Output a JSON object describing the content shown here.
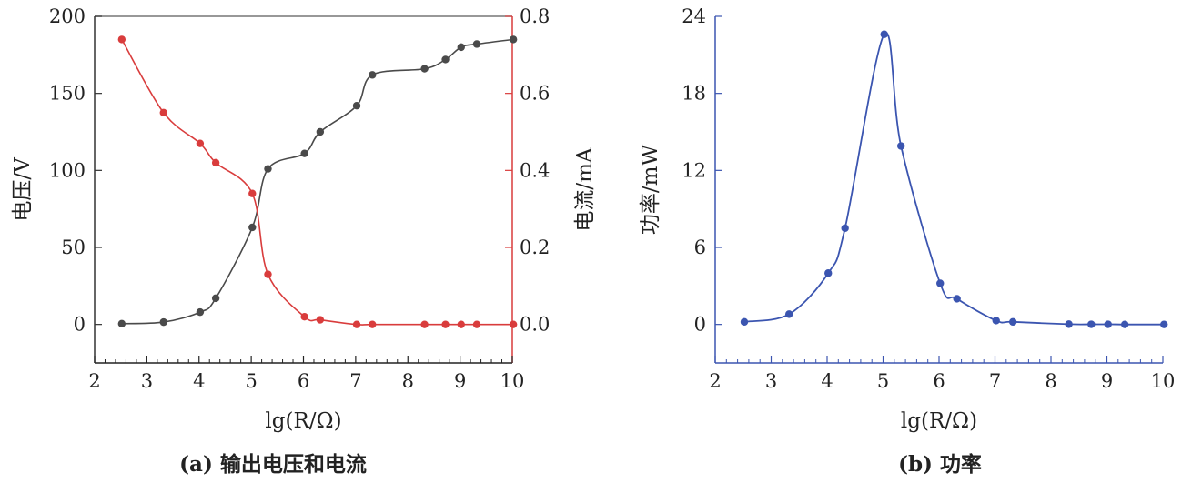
{
  "figure": {
    "captions": [
      "(a) 输出电压和电流",
      "(b) 功率"
    ]
  },
  "chart_data": [
    {
      "type": "line",
      "panel": "a",
      "caption": "(a) 输出电压和电流",
      "title": "",
      "xlabel": "lg(R/Ω)",
      "ylabel": "电压/V",
      "y2label": "电流/mA",
      "xlim": [
        2,
        10
      ],
      "ylim": [
        -25,
        200
      ],
      "y2lim": [
        -0.1,
        0.8
      ],
      "x_ticks": [
        2,
        3,
        4,
        5,
        6,
        7,
        8,
        9,
        10
      ],
      "y_ticks": [
        0,
        50,
        100,
        150,
        200
      ],
      "y2_ticks": [
        "0.0",
        "0.2",
        "0.4",
        "0.6",
        "0.8"
      ],
      "grid": false,
      "legend": "none",
      "series": [
        {
          "axis": "left",
          "color": "#4a4a4a",
          "x": [
            2.52,
            3.32,
            4.02,
            4.32,
            5.02,
            5.32,
            6.02,
            6.32,
            7.02,
            7.32,
            8.32,
            8.72,
            9.02,
            9.32,
            10.02
          ],
          "values": [
            0.5,
            1.5,
            8,
            17,
            63,
            101,
            111,
            125,
            142,
            162,
            166,
            172,
            180,
            182,
            185
          ]
        },
        {
          "axis": "right",
          "color": "#d93c3c",
          "x": [
            2.52,
            3.32,
            4.02,
            4.32,
            5.02,
            5.32,
            6.02,
            6.32,
            7.02,
            7.32,
            8.32,
            8.72,
            9.02,
            9.32,
            10.02
          ],
          "values": [
            0.74,
            0.55,
            0.47,
            0.42,
            0.34,
            0.13,
            0.02,
            0.012,
            0.0,
            0.0,
            0.0,
            0.0,
            0.0,
            0.0,
            0.0
          ]
        }
      ]
    },
    {
      "type": "line",
      "panel": "b",
      "caption": "(b) 功率",
      "title": "",
      "xlabel": "lg(R/Ω)",
      "ylabel": "功率/mW",
      "xlim": [
        2,
        10
      ],
      "ylim": [
        -3,
        24
      ],
      "x_ticks": [
        2,
        3,
        4,
        5,
        6,
        7,
        8,
        9,
        10
      ],
      "y_ticks": [
        0,
        6,
        12,
        18,
        24
      ],
      "grid": false,
      "legend": "none",
      "series": [
        {
          "color": "#3b55b0",
          "x": [
            2.52,
            3.32,
            4.02,
            4.32,
            5.02,
            5.32,
            6.02,
            6.32,
            7.02,
            7.32,
            8.32,
            8.72,
            9.02,
            9.32,
            10.02
          ],
          "values": [
            0.2,
            0.8,
            4.0,
            7.5,
            22.6,
            13.9,
            3.2,
            2.0,
            0.3,
            0.2,
            0.02,
            0.01,
            0.01,
            0.0,
            0.0
          ]
        }
      ]
    }
  ]
}
